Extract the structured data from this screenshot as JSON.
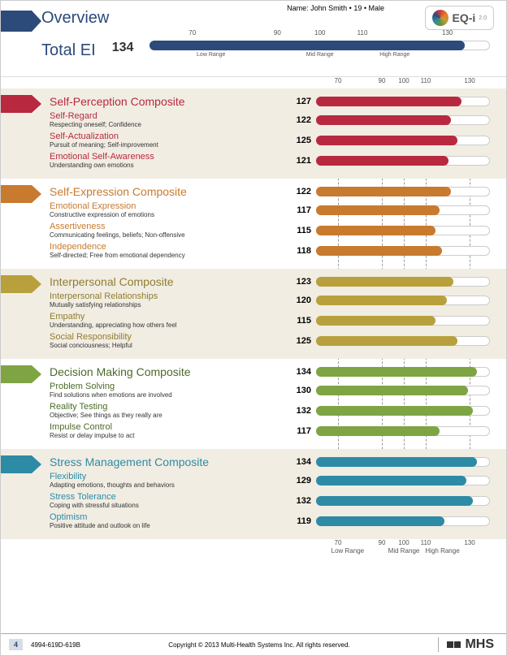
{
  "meta": {
    "name_line": "Name: John Smith • 19 • Male",
    "logo": "EQ-i",
    "logo_sup": "2.0"
  },
  "axis": {
    "ticks": [
      70,
      90,
      100,
      110,
      130
    ],
    "min": 60,
    "max": 140,
    "ranges": [
      {
        "label": "Low Range",
        "pos": 0.18
      },
      {
        "label": "Mid Range",
        "pos": 0.5
      },
      {
        "label": "High Range",
        "pos": 0.72
      }
    ]
  },
  "overview": {
    "title": "Overview",
    "subtitle": "Total EI",
    "score": 134,
    "bar_color": "#2c4a7a",
    "chevron_color": "#2c4a7a"
  },
  "sections": [
    {
      "alt": true,
      "color": "#b8293f",
      "text_color": "#b8293f",
      "title": "Self-Perception Composite",
      "score": 127,
      "items": [
        {
          "title": "Self-Regard",
          "desc": "Respecting oneself; Confidence",
          "score": 122
        },
        {
          "title": "Self-Actualization",
          "desc": "Pursuit of meaning; Self-improvement",
          "score": 125
        },
        {
          "title": "Emotional Self-Awareness",
          "desc": "Understanding own emotions",
          "score": 121
        }
      ]
    },
    {
      "alt": false,
      "color": "#c87a2e",
      "text_color": "#c87a2e",
      "title": "Self-Expression Composite",
      "score": 122,
      "items": [
        {
          "title": "Emotional Expression",
          "desc": "Constructive expression of emotions",
          "score": 117
        },
        {
          "title": "Assertiveness",
          "desc": "Communicating feelings, beliefs; Non-offensive",
          "score": 115
        },
        {
          "title": "Independence",
          "desc": "Self-directed; Free from emotional dependency",
          "score": 118
        }
      ]
    },
    {
      "alt": true,
      "color": "#b8a03c",
      "text_color": "#8f7d2e",
      "title": "Interpersonal Composite",
      "score": 123,
      "items": [
        {
          "title": "Interpersonal Relationships",
          "desc": "Mutually satisfying relationships",
          "score": 120
        },
        {
          "title": "Empathy",
          "desc": "Understanding, appreciating how others feel",
          "score": 115
        },
        {
          "title": "Social Responsibility",
          "desc": "Social conciousness; Helpful",
          "score": 125
        }
      ]
    },
    {
      "alt": false,
      "color": "#7ea444",
      "text_color": "#4a6b2a",
      "title": "Decision Making Composite",
      "score": 134,
      "items": [
        {
          "title": "Problem Solving",
          "desc": "Find solutions when emotions are involved",
          "score": 130
        },
        {
          "title": "Reality Testing",
          "desc": "Objective; See things as they really are",
          "score": 132
        },
        {
          "title": "Impulse Control",
          "desc": "Resist or delay impulse to act",
          "score": 117
        }
      ]
    },
    {
      "alt": true,
      "color": "#2d8ba5",
      "text_color": "#2d8ba5",
      "title": "Stress Management Composite",
      "score": 134,
      "items": [
        {
          "title": "Flexibility",
          "desc": "Adapting emotions, thoughts and behaviors",
          "score": 129
        },
        {
          "title": "Stress Tolerance",
          "desc": "Coping with stressful situations",
          "score": 132
        },
        {
          "title": "Optimism",
          "desc": "Positive attitude and outlook on life",
          "score": 119
        }
      ]
    }
  ],
  "footer": {
    "page": "4",
    "code": "4994-619D-619B",
    "copyright": "Copyright © 2013 Multi-Health Systems Inc. All rights reserved.",
    "publisher": "MHS"
  }
}
